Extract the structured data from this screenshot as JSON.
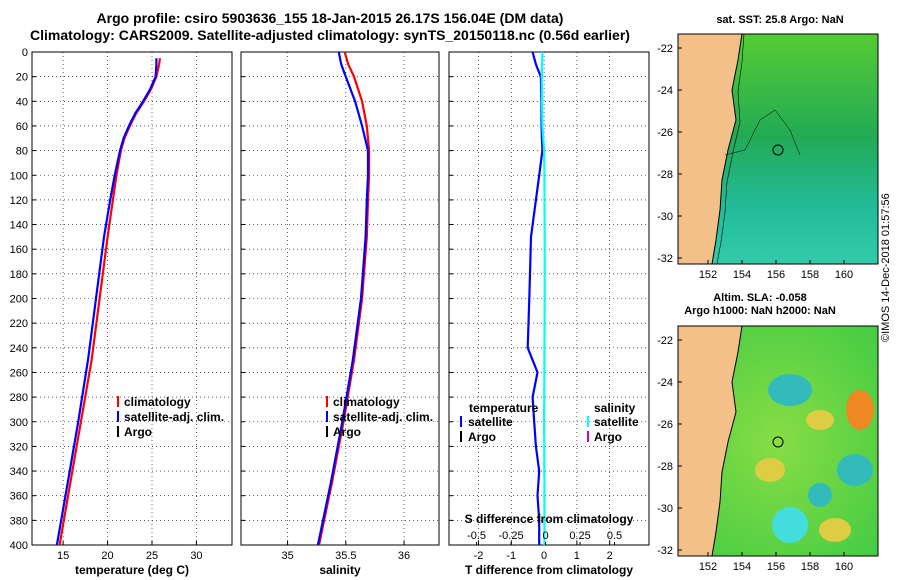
{
  "title_line1": "Argo profile: csiro 5903636_155 18-Jan-2015 26.17S 156.04E (DM data)",
  "title_line2": "Climatology: CARS2009. Satellite-adjusted climatology: synTS_20150118.nc (0.56d earlier)",
  "footer_stamp": "©IMOS 14-Dec-2018 01:57:56",
  "colors": {
    "climatology": "#ff0000",
    "satellite": "#0000ff",
    "argo": "#000000",
    "cyan": "#00ffff",
    "magenta": "#cc00cc"
  },
  "depth_ticks": [
    "0",
    "20",
    "40",
    "60",
    "80",
    "100",
    "120",
    "140",
    "160",
    "180",
    "200",
    "220",
    "240",
    "260",
    "280",
    "300",
    "320",
    "340",
    "360",
    "380",
    "400"
  ],
  "chart_data": [
    {
      "type": "line",
      "name": "temperature",
      "xlabel": "temperature (deg C)",
      "ylabel": "depth",
      "xlim": [
        11.5,
        34
      ],
      "ylim": [
        0,
        400
      ],
      "xticks": [
        "15",
        "20",
        "25",
        "30"
      ],
      "legend": [
        "climatology",
        "satellite-adj. clim.",
        "Argo"
      ],
      "series": [
        {
          "name": "climatology",
          "color": "#ff0000",
          "depth": [
            5,
            10,
            20,
            30,
            40,
            50,
            60,
            70,
            80,
            100,
            120,
            150,
            200,
            250,
            300,
            350,
            400
          ],
          "values": [
            25.9,
            25.8,
            25.5,
            24.9,
            24.1,
            23.2,
            22.5,
            21.9,
            21.5,
            21.0,
            20.6,
            20.0,
            19.1,
            18.2,
            17.0,
            15.8,
            14.6
          ]
        },
        {
          "name": "satellite-adj. clim.",
          "color": "#0000ff",
          "depth": [
            5,
            10,
            20,
            30,
            40,
            50,
            60,
            70,
            80,
            100,
            120,
            150,
            200,
            250,
            300,
            350,
            400
          ],
          "values": [
            25.5,
            25.5,
            25.4,
            24.8,
            24.0,
            23.1,
            22.4,
            21.8,
            21.4,
            20.8,
            20.3,
            19.6,
            18.7,
            17.8,
            16.7,
            15.5,
            14.3
          ]
        }
      ]
    },
    {
      "type": "line",
      "name": "salinity",
      "xlabel": "salinity",
      "ylabel": "depth",
      "xlim": [
        34.6,
        36.3
      ],
      "ylim": [
        0,
        400
      ],
      "xticks": [
        "35",
        "35.5",
        "36"
      ],
      "legend": [
        "climatology",
        "satellite-adj. clim.",
        "Argo"
      ],
      "series": [
        {
          "name": "climatology",
          "color": "#ff0000",
          "depth": [
            0,
            10,
            20,
            40,
            60,
            80,
            100,
            120,
            150,
            200,
            250,
            300,
            350,
            400
          ],
          "values": [
            35.49,
            35.52,
            35.57,
            35.64,
            35.68,
            35.7,
            35.7,
            35.69,
            35.68,
            35.64,
            35.57,
            35.48,
            35.38,
            35.27
          ]
        },
        {
          "name": "satellite-adj. clim.",
          "color": "#0000ff",
          "depth": [
            0,
            10,
            20,
            40,
            60,
            80,
            100,
            120,
            150,
            200,
            250,
            300,
            350,
            400
          ],
          "values": [
            35.44,
            35.46,
            35.5,
            35.58,
            35.64,
            35.69,
            35.69,
            35.68,
            35.67,
            35.63,
            35.56,
            35.47,
            35.37,
            35.26
          ]
        }
      ]
    },
    {
      "type": "line",
      "name": "difference",
      "xlabel": "T difference from climatology",
      "ylabel": "depth",
      "xlim": [
        -2.9,
        3.2
      ],
      "ylim": [
        0,
        400
      ],
      "xticks": [
        "-2",
        "-1",
        "0",
        "1",
        "2"
      ],
      "s_label": "S difference from climatology",
      "s_ticks": [
        "-0.5",
        "-0.25",
        "0",
        "0.25",
        "0.5"
      ],
      "legend_left_title": "temperature",
      "legend_right_title": "salinity",
      "legend_left": [
        "satellite",
        "Argo"
      ],
      "legend_right": [
        "satellite",
        "Argo"
      ],
      "series": [
        {
          "name": "temperature satellite",
          "color": "#0000ff",
          "depth": [
            0,
            10,
            20,
            40,
            60,
            80,
            100,
            150,
            200,
            240,
            260,
            280,
            300,
            320,
            340,
            360,
            380,
            400
          ],
          "values": [
            -0.35,
            -0.25,
            -0.1,
            -0.08,
            -0.08,
            -0.05,
            -0.15,
            -0.4,
            -0.45,
            -0.5,
            -0.2,
            -0.35,
            -0.3,
            -0.25,
            -0.15,
            -0.2,
            -0.15,
            -0.15
          ]
        },
        {
          "name": "salinity satellite",
          "color": "#00ffff",
          "depth": [
            0,
            10,
            20,
            40,
            60,
            80,
            100,
            150,
            200,
            250,
            300,
            350,
            400
          ],
          "values": [
            -0.05,
            -0.06,
            -0.07,
            -0.06,
            -0.05,
            0,
            0.01,
            0.02,
            0.02,
            0.01,
            0.0,
            0.01,
            0.01
          ]
        }
      ]
    },
    {
      "type": "heatmap",
      "name": "sst-map",
      "title": "sat. SST: 25.8 Argo: NaN",
      "xticks": [
        "152",
        "154",
        "156",
        "158",
        "160"
      ],
      "yticks": [
        "-22",
        "-24",
        "-26",
        "-28",
        "-30",
        "-32"
      ]
    },
    {
      "type": "heatmap",
      "name": "sla-map",
      "title_line1": "Altim. SLA: -0.058",
      "title_line2": "Argo h1000: NaN h2000: NaN",
      "xticks": [
        "152",
        "154",
        "156",
        "158",
        "160"
      ],
      "yticks": [
        "-22",
        "-24",
        "-26",
        "-28",
        "-30",
        "-32"
      ]
    }
  ]
}
